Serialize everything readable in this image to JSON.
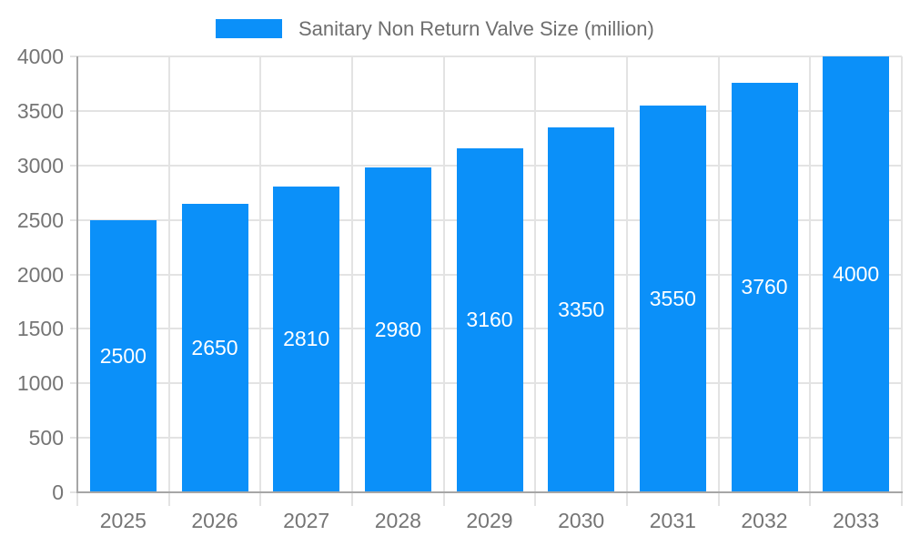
{
  "legend": {
    "label": "Sanitary Non Return Valve Size (million)",
    "swatch_color": "#0b90f9"
  },
  "chart_data": {
    "type": "bar",
    "title": "Sanitary Non Return Valve Size (million)",
    "categories": [
      "2025",
      "2026",
      "2027",
      "2028",
      "2029",
      "2030",
      "2031",
      "2032",
      "2033"
    ],
    "values": [
      2500,
      2650,
      2810,
      2980,
      3160,
      3350,
      3550,
      3760,
      4000
    ],
    "xlabel": "",
    "ylabel": "",
    "ylim": [
      0,
      4000
    ],
    "y_ticks": [
      0,
      500,
      1000,
      1500,
      2000,
      2500,
      3000,
      3500,
      4000
    ],
    "grid": true,
    "legend_position": "top",
    "data_label_position": "inside-center",
    "bar_color": "#0b90f9",
    "data_label_color": "#ffffff"
  },
  "colors": {
    "background": "#ffffff",
    "bar": "#0b90f9",
    "grid": "#e3e3e3",
    "axis": "#a6a6a6",
    "tick_label": "#757575",
    "legend_text": "#6e6e6e",
    "data_label": "#ffffff"
  }
}
